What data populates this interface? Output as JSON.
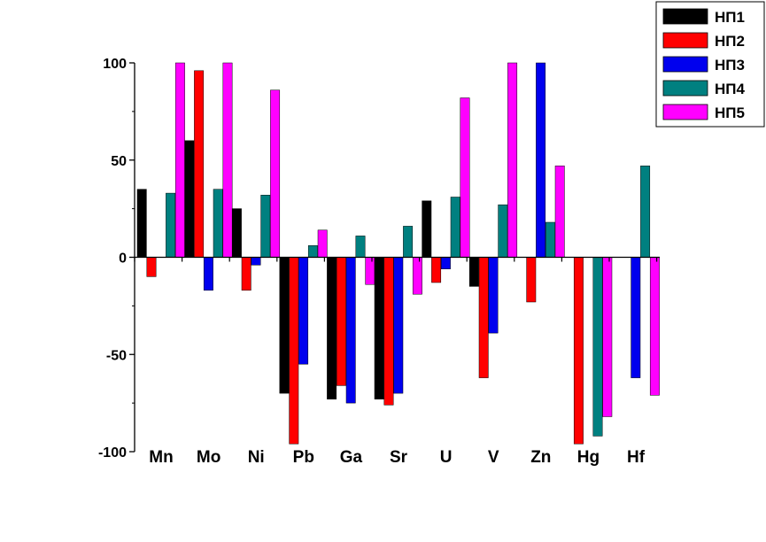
{
  "chart_data": {
    "type": "bar",
    "title": "",
    "xlabel": "",
    "ylabel": "",
    "ylim": [
      -100,
      100
    ],
    "yticks": [
      100,
      50,
      0,
      -50,
      -100
    ],
    "grid": false,
    "legend_position": "top-right",
    "categories": [
      "Mn",
      "Mo",
      "Ni",
      "Pb",
      "Ga",
      "Sr",
      "U",
      "V",
      "Zn",
      "Hg",
      "Hf"
    ],
    "series": [
      {
        "name": "НП1",
        "color": "#000000",
        "values": [
          35,
          60,
          25,
          -70,
          -73,
          -73,
          29,
          -15,
          0,
          0,
          0
        ]
      },
      {
        "name": "НП2",
        "color": "#ff0000",
        "values": [
          -10,
          96,
          -17,
          -96,
          -66,
          -76,
          -13,
          -62,
          -23,
          -96,
          0
        ]
      },
      {
        "name": "НП3",
        "color": "#0000ee",
        "values": [
          0,
          -17,
          -4,
          -55,
          -75,
          -70,
          -6,
          -39,
          100,
          0,
          -62
        ]
      },
      {
        "name": "НП4",
        "color": "#008080",
        "values": [
          33,
          35,
          32,
          6,
          11,
          16,
          31,
          27,
          18,
          -92,
          47
        ]
      },
      {
        "name": "НП5",
        "color": "#ff00ff",
        "values": [
          100,
          100,
          86,
          14,
          -14,
          -19,
          82,
          100,
          47,
          -82,
          -71
        ]
      }
    ]
  }
}
